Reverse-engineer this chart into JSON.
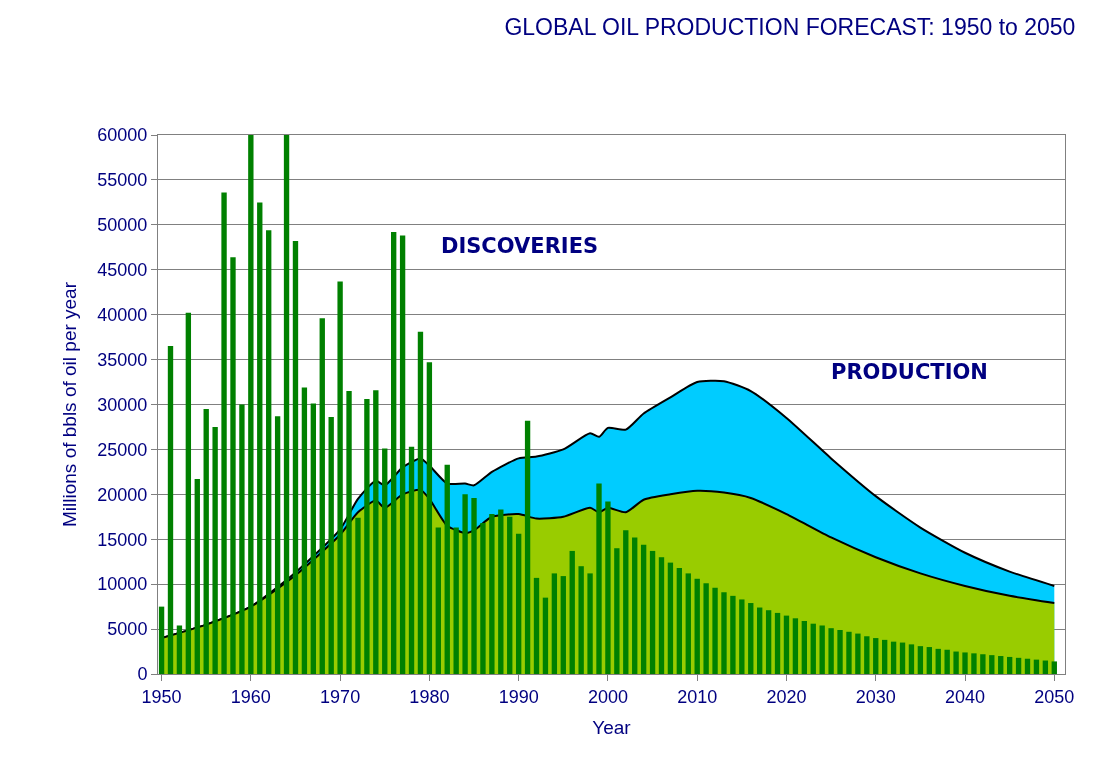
{
  "chart_data": {
    "type": "bar",
    "title": "GLOBAL OIL PRODUCTION FORECAST: 1950 to 2050",
    "xlabel": "Year",
    "ylabel": "Millions of bbls of oil per year",
    "annotations": [
      "DISCOVERIES",
      "PRODUCTION"
    ],
    "xlim": [
      1949.6,
      2051.2
    ],
    "xticks": [
      1950,
      1960,
      1970,
      1980,
      1990,
      2000,
      2010,
      2020,
      2030,
      2040,
      2050
    ],
    "ylim": [
      0,
      60000
    ],
    "yticks": [
      0,
      5000,
      10000,
      15000,
      20000,
      25000,
      30000,
      35000,
      40000,
      45000,
      50000,
      55000,
      60000
    ],
    "grid": "y",
    "series": [
      {
        "type": "area",
        "color": "#99cc00",
        "x": [
          1950,
          1955,
          1960,
          1965,
          1970,
          1972,
          1974,
          1975,
          1977,
          1979,
          1980,
          1982,
          1984,
          1985,
          1987,
          1990,
          1992,
          1995,
          1998,
          1999,
          2000,
          2002,
          2004,
          2007,
          2010,
          2013,
          2016,
          2020,
          2025,
          2030,
          2035,
          2040,
          2045,
          2050
        ],
        "values": [
          4000,
          5500,
          7500,
          11000,
          15500,
          18000,
          19300,
          18500,
          20000,
          20500,
          19500,
          16500,
          15700,
          16000,
          17500,
          17800,
          17300,
          17500,
          18500,
          18000,
          18500,
          18000,
          19400,
          20000,
          20400,
          20200,
          19600,
          17800,
          15200,
          13000,
          11200,
          9800,
          8700,
          7900
        ]
      },
      {
        "type": "area",
        "color": "#00ccff",
        "x": [
          1950,
          1955,
          1960,
          1965,
          1970,
          1972,
          1974,
          1975,
          1977,
          1979,
          1980,
          1982,
          1984,
          1985,
          1987,
          1990,
          1992,
          1995,
          1998,
          1999,
          2000,
          2002,
          2004,
          2007,
          2010,
          2013,
          2016,
          2020,
          2025,
          2030,
          2035,
          2040,
          2045,
          2050
        ],
        "values": [
          4000,
          5500,
          7500,
          11300,
          16100,
          19500,
          21500,
          21000,
          23000,
          24000,
          23200,
          21200,
          21200,
          21000,
          22500,
          24000,
          24200,
          25000,
          26800,
          26400,
          27400,
          27200,
          29000,
          30800,
          32500,
          32600,
          31500,
          28500,
          24000,
          19800,
          16300,
          13500,
          11400,
          9800
        ]
      },
      {
        "color": "#008000",
        "x": [
          1950,
          1951,
          1952,
          1953,
          1954,
          1955,
          1956,
          1957,
          1958,
          1959,
          1960,
          1961,
          1962,
          1963,
          1964,
          1965,
          1966,
          1967,
          1968,
          1969,
          1970,
          1971,
          1972,
          1973,
          1974,
          1975,
          1976,
          1977,
          1978,
          1979,
          1980,
          1981,
          1982,
          1983,
          1984,
          1985,
          1986,
          1987,
          1988,
          1989,
          1990,
          1991,
          1992,
          1993,
          1994,
          1995,
          1996,
          1997,
          1998,
          1999,
          2000,
          2001,
          2002,
          2003,
          2004,
          2005,
          2006,
          2007,
          2008,
          2009,
          2010,
          2011,
          2012,
          2013,
          2014,
          2015,
          2016,
          2017,
          2018,
          2019,
          2020,
          2021,
          2022,
          2023,
          2024,
          2025,
          2026,
          2027,
          2028,
          2029,
          2030,
          2031,
          2032,
          2033,
          2034,
          2035,
          2036,
          2037,
          2038,
          2039,
          2040,
          2041,
          2042,
          2043,
          2044,
          2045,
          2046,
          2047,
          2048,
          2049,
          2050
        ],
        "values": [
          7500,
          36500,
          5400,
          40200,
          21700,
          29500,
          27500,
          53600,
          46400,
          30000,
          60000,
          52500,
          49400,
          28700,
          60000,
          48200,
          31900,
          30100,
          39600,
          28600,
          43700,
          31500,
          17400,
          30600,
          31600,
          25100,
          49200,
          48800,
          25300,
          38100,
          34700,
          16300,
          23300,
          16300,
          20000,
          19600,
          16800,
          17800,
          18300,
          17500,
          15600,
          28200,
          10700,
          8500,
          11200,
          10900,
          13700,
          12000,
          11200,
          21200,
          19200,
          14000,
          16000,
          15200,
          14400,
          13700,
          13000,
          12400,
          11800,
          11200,
          10600,
          10100,
          9600,
          9100,
          8700,
          8300,
          7900,
          7400,
          7100,
          6800,
          6500,
          6200,
          5900,
          5600,
          5400,
          5100,
          4900,
          4700,
          4500,
          4200,
          4000,
          3800,
          3600,
          3500,
          3300,
          3100,
          3000,
          2800,
          2700,
          2500,
          2400,
          2300,
          2200,
          2100,
          2000,
          1900,
          1800,
          1700,
          1600,
          1500,
          1400
        ]
      }
    ]
  }
}
